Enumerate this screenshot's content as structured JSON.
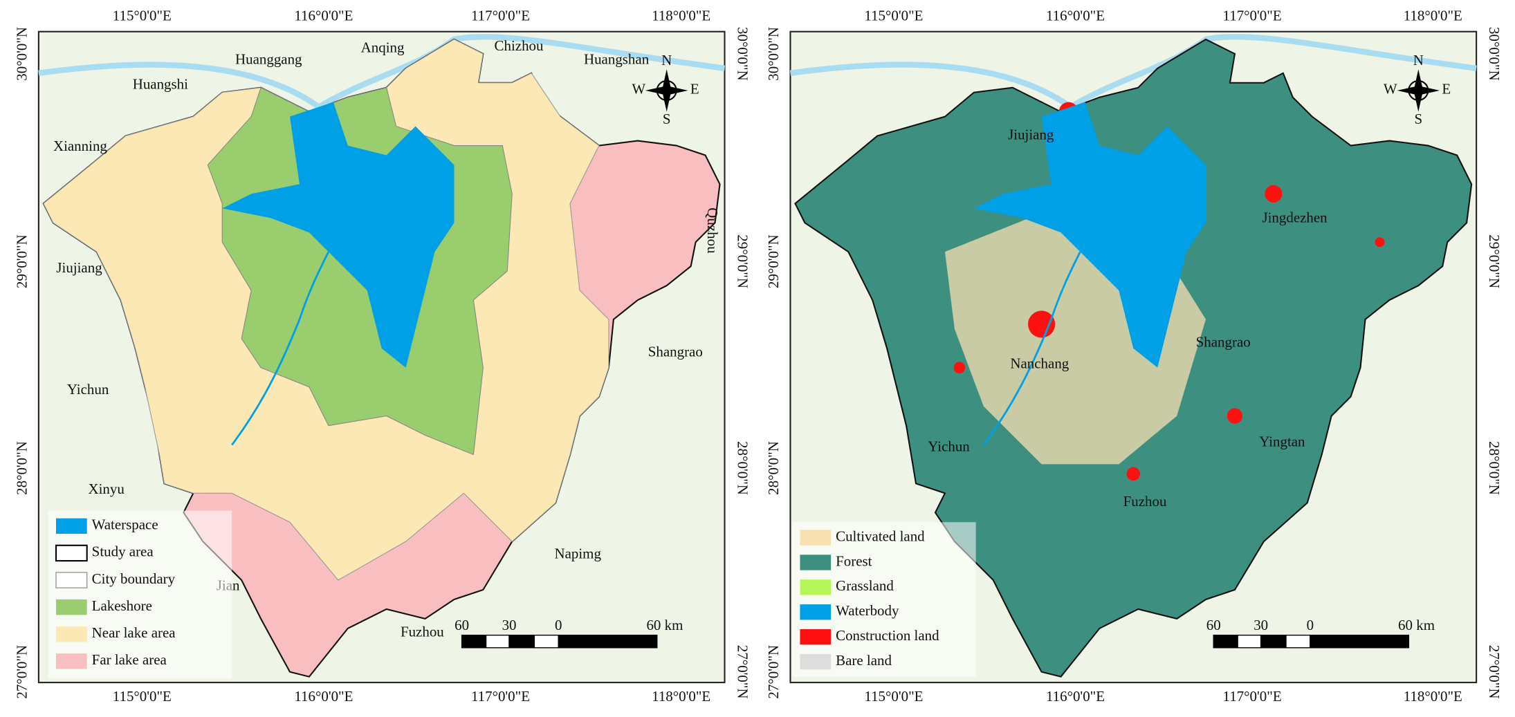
{
  "graticule": {
    "longitude_labels": [
      "115°0'0\"E",
      "116°0'0\"E",
      "117°0'0\"E",
      "118°0'0\"E"
    ],
    "latitude_labels": [
      "30°0'0\"N",
      "29°0'0\"N",
      "28°0'0\"N",
      "27°0'0\"N"
    ]
  },
  "scale_bar": {
    "labels": [
      "60",
      "30",
      "0",
      "60 km"
    ]
  },
  "compass": {
    "n": "N",
    "e": "E",
    "s": "S",
    "w": "W"
  },
  "maps": [
    {
      "place_labels": [
        "Huanggang",
        "Anqing",
        "Chizhou",
        "Huangshan",
        "Huangshi",
        "Xianning",
        "Jiujiang",
        "Quzhou",
        "Shangrao",
        "Yichun",
        "Xinyu",
        "Jian",
        "Fuzhou",
        "Napimg"
      ],
      "legend": [
        {
          "label": "Waterspace",
          "color": "#00a0e6"
        },
        {
          "label": "Study area",
          "color": "#ffffff"
        },
        {
          "label": "City boundary",
          "color": "#ffffff"
        },
        {
          "label": "Lakeshore",
          "color": "#9acd6e"
        },
        {
          "label": "Near lake area",
          "color": "#fce8b5"
        },
        {
          "label": "Far lake area",
          "color": "#f9bfc0"
        }
      ]
    },
    {
      "place_labels": [
        "Jiujiang",
        "Jingdezhen",
        "Shangrao",
        "Nanchang",
        "Yichun",
        "Yingtan",
        "Fuzhou"
      ],
      "legend": [
        {
          "label": "Cultivated land",
          "color": "#f7dfb0"
        },
        {
          "label": "Forest",
          "color": "#3d8f80"
        },
        {
          "label": "Grassland",
          "color": "#b6f55a"
        },
        {
          "label": "Waterbody",
          "color": "#00a0e6"
        },
        {
          "label": "Construction land",
          "color": "#ff1010"
        },
        {
          "label": "Bare land",
          "color": "#dddddd"
        }
      ]
    }
  ]
}
